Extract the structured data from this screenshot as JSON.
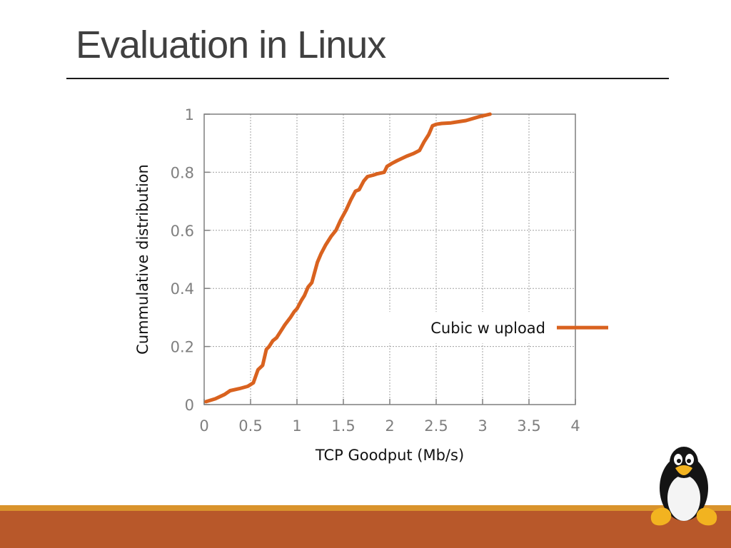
{
  "slide": {
    "title": "Evaluation in Linux"
  },
  "colors": {
    "accent": "#d9621f",
    "footer_top": "#d9932c",
    "footer_bar": "#b8582a",
    "grid": "#a0a0a0",
    "axis": "#7f7f7f"
  },
  "icons": {
    "mascot": "tux-penguin-icon"
  },
  "chart_data": {
    "type": "line",
    "title": "",
    "xlabel": "TCP Goodput (Mb/s)",
    "ylabel": "Cummulative distribution",
    "xlim": [
      0,
      4
    ],
    "ylim": [
      0,
      1
    ],
    "x_ticks": [
      0,
      0.5,
      1,
      1.5,
      2,
      2.5,
      3,
      3.5,
      4
    ],
    "x_tick_labels": [
      "0",
      "0.5",
      "1",
      "1.5",
      "2",
      "2.5",
      "3",
      "3.5",
      "4"
    ],
    "y_ticks": [
      0,
      0.2,
      0.4,
      0.6,
      0.8,
      1
    ],
    "y_tick_labels": [
      "0",
      "0.2",
      "0.4",
      "0.6",
      "0.8",
      "1"
    ],
    "grid": true,
    "legend_position": "right-middle",
    "series": [
      {
        "name": "Cubic w upload",
        "color": "#d9621f",
        "x": [
          0.02,
          0.12,
          0.22,
          0.28,
          0.38,
          0.47,
          0.53,
          0.58,
          0.63,
          0.67,
          0.7,
          0.74,
          0.78,
          0.82,
          0.87,
          0.93,
          0.97,
          1.0,
          1.05,
          1.08,
          1.12,
          1.16,
          1.22,
          1.26,
          1.31,
          1.37,
          1.42,
          1.47,
          1.53,
          1.58,
          1.63,
          1.67,
          1.72,
          1.76,
          1.82,
          1.87,
          1.94,
          1.97,
          2.02,
          2.08,
          2.18,
          2.26,
          2.32,
          2.37,
          2.42,
          2.46,
          2.5,
          2.56,
          2.66,
          2.82,
          2.97,
          3.08
        ],
        "y": [
          0.01,
          0.02,
          0.035,
          0.048,
          0.055,
          0.063,
          0.075,
          0.12,
          0.135,
          0.19,
          0.2,
          0.22,
          0.23,
          0.25,
          0.275,
          0.3,
          0.32,
          0.33,
          0.36,
          0.375,
          0.405,
          0.42,
          0.49,
          0.52,
          0.55,
          0.58,
          0.6,
          0.635,
          0.67,
          0.705,
          0.735,
          0.74,
          0.77,
          0.785,
          0.79,
          0.795,
          0.8,
          0.82,
          0.83,
          0.84,
          0.855,
          0.865,
          0.875,
          0.905,
          0.93,
          0.96,
          0.965,
          0.968,
          0.97,
          0.978,
          0.992,
          1.0
        ]
      }
    ]
  }
}
